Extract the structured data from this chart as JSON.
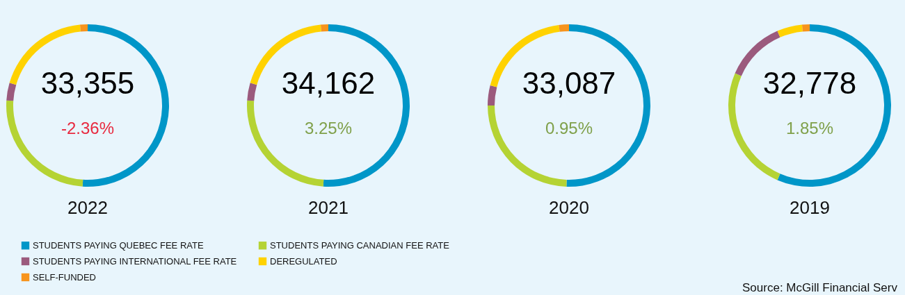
{
  "chart_data": [
    {
      "type": "donut",
      "title": "33,355",
      "subtitle": "-2.36%",
      "xlabel": "2022",
      "categories": [
        "STUDENTS PAYING QUEBEC FEE RATE",
        "STUDENTS PAYING CANADIAN FEE RATE",
        "STUDENTS PAYING INTERNATIONAL FEE RATE",
        "DEREGULATED",
        "SELF-FUNDED"
      ],
      "values": [
        51,
        25,
        3.5,
        19,
        1.5
      ],
      "colors": [
        "#0096c8",
        "#b5d334",
        "#9b5a7d",
        "#ffd200",
        "#f7941d"
      ],
      "legend": "bottom"
    },
    {
      "type": "donut",
      "title": "34,162",
      "subtitle": "3.25%",
      "xlabel": "2021",
      "categories": [
        null,
        null,
        null,
        null,
        null
      ],
      "values": [
        51,
        25,
        3.5,
        19,
        1.5
      ],
      "colors": [
        "#0096c8",
        "#b5d334",
        "#9b5a7d",
        "#ffd200",
        "#f7941d"
      ]
    },
    {
      "type": "donut",
      "title": "33,087",
      "subtitle": "0.95%",
      "xlabel": "2020",
      "categories": [
        null,
        null,
        null,
        null,
        null
      ],
      "values": [
        50.5,
        24.5,
        4,
        19,
        2
      ],
      "colors": [
        "#0096c8",
        "#b5d334",
        "#9b5a7d",
        "#ffd200",
        "#f7941d"
      ]
    },
    {
      "type": "donut",
      "title": "32,778",
      "subtitle": "1.85%",
      "xlabel": "2019",
      "categories": [
        null,
        null,
        null,
        null,
        null
      ],
      "values": [
        56.5,
        25,
        12,
        5,
        1.5
      ],
      "colors": [
        "#0096c8",
        "#b5d334",
        "#9b5a7d",
        "#ffd200",
        "#f7941d"
      ],
      "annotations": [
        "Source:  McGill Financial Serv"
      ]
    }
  ]
}
